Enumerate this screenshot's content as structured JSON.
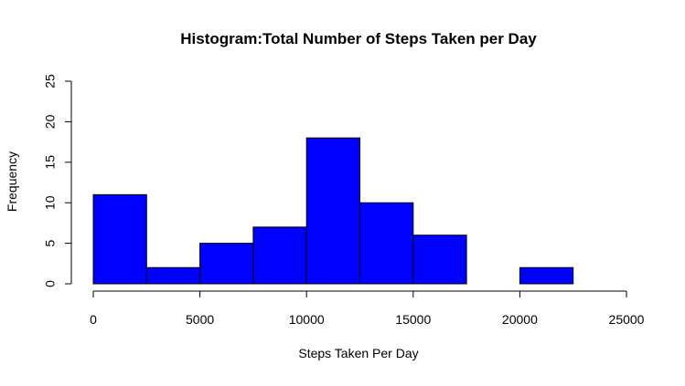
{
  "chart_data": {
    "type": "bar",
    "title": "Histogram:Total Number of Steps Taken per Day",
    "xlabel": "Steps Taken Per Day",
    "ylabel": "Frequency",
    "xlim": [
      0,
      25000
    ],
    "ylim": [
      0,
      25
    ],
    "xticks": [
      "0",
      "5000",
      "10000",
      "15000",
      "20000",
      "25000"
    ],
    "yticks": [
      "0",
      "5",
      "10",
      "15",
      "20",
      "25"
    ],
    "bins": [
      {
        "start": 0,
        "end": 2500,
        "count": 11
      },
      {
        "start": 2500,
        "end": 5000,
        "count": 2
      },
      {
        "start": 5000,
        "end": 7500,
        "count": 5
      },
      {
        "start": 7500,
        "end": 10000,
        "count": 7
      },
      {
        "start": 10000,
        "end": 12500,
        "count": 18
      },
      {
        "start": 12500,
        "end": 15000,
        "count": 10
      },
      {
        "start": 15000,
        "end": 17500,
        "count": 6
      },
      {
        "start": 17500,
        "end": 20000,
        "count": 0
      },
      {
        "start": 20000,
        "end": 22500,
        "count": 2
      },
      {
        "start": 22500,
        "end": 25000,
        "count": 0
      }
    ],
    "bar_color": "#0000ff",
    "bar_border_color": "#000000",
    "grid": false,
    "legend": "none"
  }
}
